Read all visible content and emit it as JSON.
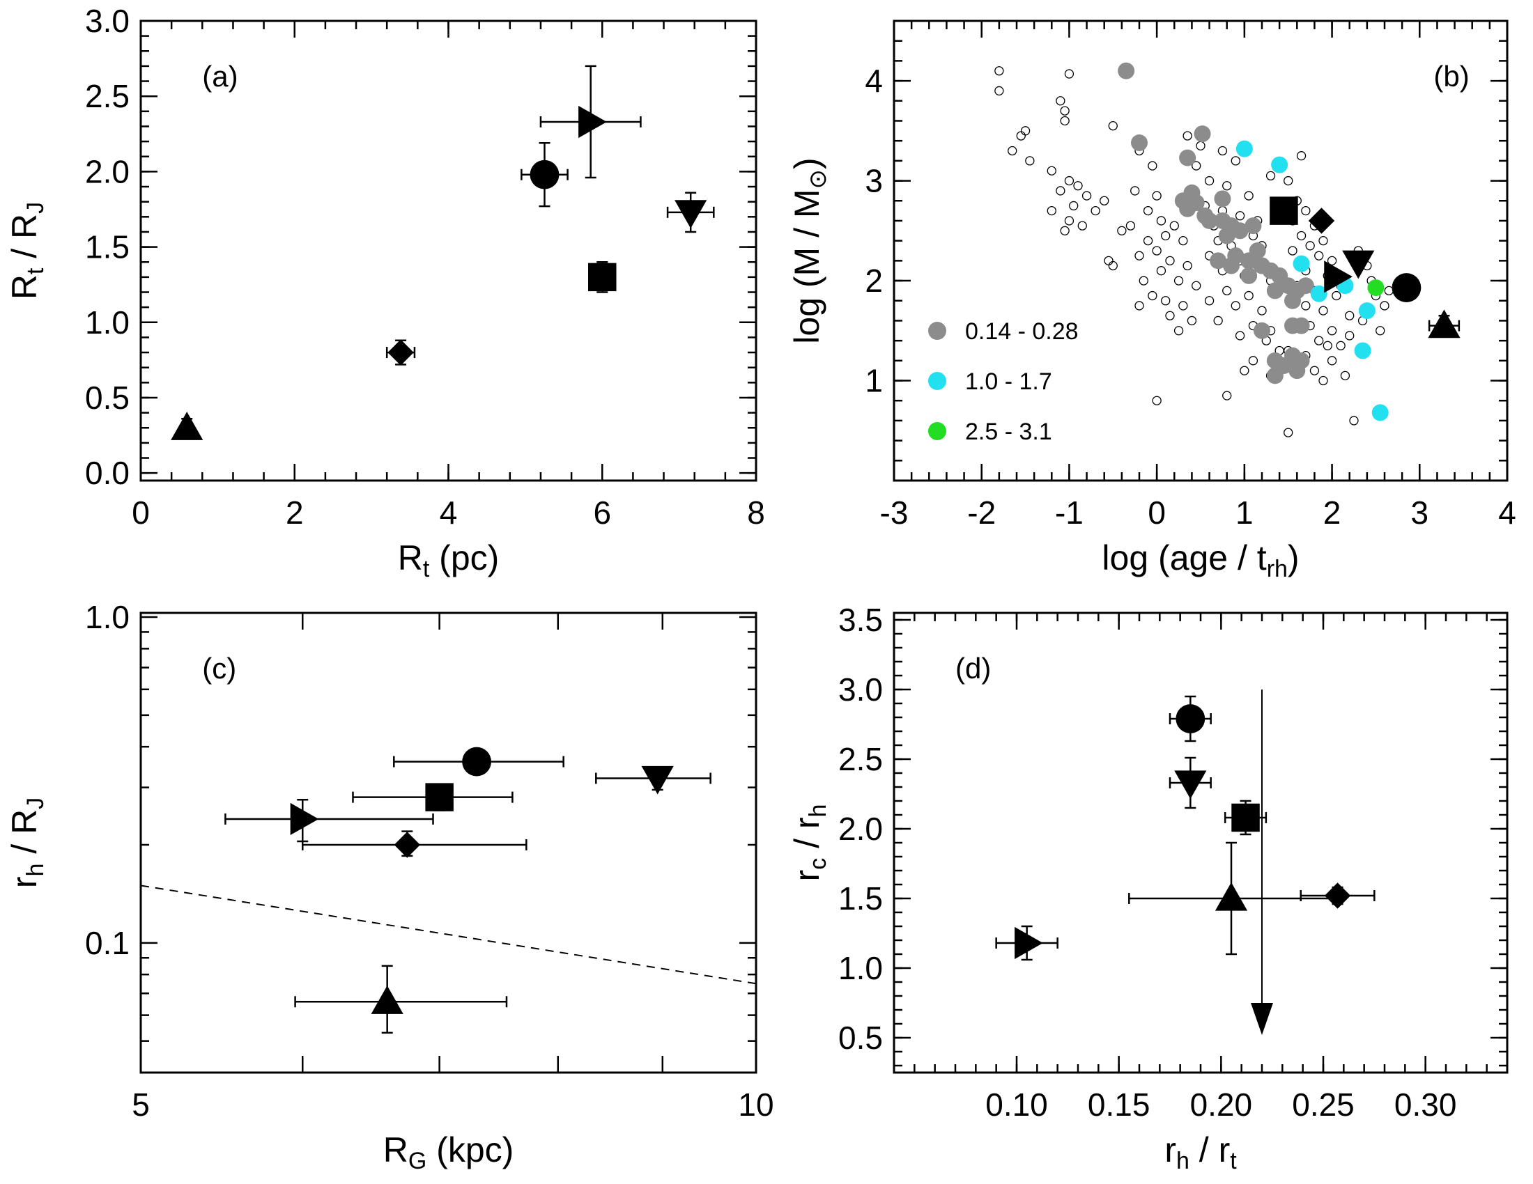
{
  "chart_data": [
    {
      "id": "a",
      "type": "scatter",
      "panel_label": "(a)",
      "xlabel": {
        "main": "R",
        "sub": "t",
        "tail": " (pc)"
      },
      "ylabel": {
        "main": "R",
        "sub": "t",
        "mid": " / R",
        "sub2": "J"
      },
      "xlim": [
        0,
        8
      ],
      "ylim": [
        -0.05,
        3.0
      ],
      "xticks": [
        0,
        2,
        4,
        6,
        8
      ],
      "yticks": [
        0.0,
        0.5,
        1.0,
        1.5,
        2.0,
        2.5,
        3.0
      ],
      "xtick_labels": [
        "0",
        "2",
        "4",
        "6",
        "8"
      ],
      "ytick_labels": [
        "0.0",
        "0.5",
        "1.0",
        "1.5",
        "2.0",
        "2.5",
        "3.0"
      ],
      "points": [
        {
          "marker": "triangle-up",
          "x": 0.6,
          "y": 0.3,
          "xerr": 0,
          "yerr": 0.06
        },
        {
          "marker": "diamond",
          "x": 3.38,
          "y": 0.8,
          "xerr": 0.18,
          "yerr": 0.08
        },
        {
          "marker": "circle",
          "x": 5.25,
          "y": 1.98,
          "xerr": 0.3,
          "yerr": 0.21
        },
        {
          "marker": "triangle-right",
          "x": 5.85,
          "y": 2.33,
          "xerr": 0.65,
          "yerr": 0.37
        },
        {
          "marker": "square",
          "x": 6.0,
          "y": 1.3,
          "xerr": 0.1,
          "yerr": 0.1
        },
        {
          "marker": "triangle-down",
          "x": 7.15,
          "y": 1.73,
          "xerr": 0.3,
          "yerr": 0.13
        }
      ]
    },
    {
      "id": "b",
      "type": "scatter",
      "panel_label": "(b)",
      "xlabel": {
        "main": "log (age / t",
        "sub": "rh",
        "tail": ")"
      },
      "ylabel": {
        "main": "log (M / M",
        "sub": "⊙",
        "tail": ")"
      },
      "xlim": [
        -3,
        4
      ],
      "ylim": [
        0.0,
        4.6
      ],
      "xticks": [
        -3,
        -2,
        -1,
        0,
        1,
        2,
        3,
        4
      ],
      "yticks": [
        1,
        2,
        3,
        4
      ],
      "xtick_labels": [
        "-3",
        "-2",
        "-1",
        "0",
        "1",
        "2",
        "3",
        "4"
      ],
      "ytick_labels": [
        "1",
        "2",
        "3",
        "4"
      ],
      "legend": [
        {
          "label": "0.14 - 0.28",
          "color": "#8c8c8c"
        },
        {
          "label": "1.0 - 1.7",
          "color": "#22e0f0"
        },
        {
          "label": "2.5 - 3.1",
          "color": "#22dd22"
        }
      ],
      "background_points": [
        [
          -1.8,
          4.1
        ],
        [
          -1.8,
          3.9
        ],
        [
          -1.0,
          4.07
        ],
        [
          -1.1,
          3.8
        ],
        [
          -1.05,
          3.7
        ],
        [
          -1.05,
          3.6
        ],
        [
          -0.5,
          3.55
        ],
        [
          -1.5,
          3.5
        ],
        [
          -1.55,
          3.45
        ],
        [
          -1.65,
          3.3
        ],
        [
          -1.45,
          3.2
        ],
        [
          -1.2,
          3.1
        ],
        [
          -1.0,
          3.0
        ],
        [
          -0.9,
          2.95
        ],
        [
          -1.1,
          2.9
        ],
        [
          -0.8,
          2.85
        ],
        [
          -0.6,
          2.8
        ],
        [
          -0.95,
          2.75
        ],
        [
          -1.2,
          2.7
        ],
        [
          -0.7,
          2.7
        ],
        [
          -1.0,
          2.6
        ],
        [
          -0.85,
          2.55
        ],
        [
          -1.05,
          2.5
        ],
        [
          -0.4,
          2.5
        ],
        [
          -0.55,
          2.2
        ],
        [
          -0.5,
          2.15
        ],
        [
          -0.2,
          3.3
        ],
        [
          -0.05,
          3.15
        ],
        [
          -0.25,
          2.9
        ],
        [
          0.0,
          2.85
        ],
        [
          -0.1,
          2.7
        ],
        [
          0.05,
          2.6
        ],
        [
          -0.3,
          2.55
        ],
        [
          0.2,
          2.55
        ],
        [
          0.1,
          2.45
        ],
        [
          -0.1,
          2.4
        ],
        [
          0.3,
          2.4
        ],
        [
          0.0,
          2.3
        ],
        [
          -0.2,
          2.25
        ],
        [
          0.15,
          2.2
        ],
        [
          0.35,
          2.15
        ],
        [
          0.05,
          2.1
        ],
        [
          -0.15,
          2.0
        ],
        [
          0.25,
          2.0
        ],
        [
          0.45,
          1.95
        ],
        [
          -0.05,
          1.85
        ],
        [
          0.1,
          1.8
        ],
        [
          -0.2,
          1.75
        ],
        [
          0.3,
          1.75
        ],
        [
          0.15,
          1.65
        ],
        [
          0.4,
          1.6
        ],
        [
          0.25,
          1.5
        ],
        [
          0.0,
          0.8
        ],
        [
          0.5,
          3.35
        ],
        [
          0.75,
          3.3
        ],
        [
          0.9,
          3.2
        ],
        [
          0.6,
          3.0
        ],
        [
          0.8,
          2.95
        ],
        [
          1.05,
          2.85
        ],
        [
          0.55,
          2.75
        ],
        [
          0.75,
          2.7
        ],
        [
          0.95,
          2.65
        ],
        [
          1.15,
          2.6
        ],
        [
          0.65,
          2.55
        ],
        [
          0.9,
          2.5
        ],
        [
          1.1,
          2.45
        ],
        [
          0.7,
          2.4
        ],
        [
          0.85,
          2.35
        ],
        [
          1.2,
          2.35
        ],
        [
          0.6,
          2.25
        ],
        [
          0.95,
          2.2
        ],
        [
          1.15,
          2.15
        ],
        [
          0.75,
          2.1
        ],
        [
          1.0,
          2.05
        ],
        [
          1.3,
          2.0
        ],
        [
          0.8,
          1.9
        ],
        [
          1.05,
          1.85
        ],
        [
          0.6,
          1.8
        ],
        [
          0.9,
          1.75
        ],
        [
          1.2,
          1.7
        ],
        [
          0.7,
          1.6
        ],
        [
          1.1,
          1.55
        ],
        [
          1.3,
          1.5
        ],
        [
          0.95,
          1.45
        ],
        [
          1.25,
          1.4
        ],
        [
          1.4,
          1.3
        ],
        [
          1.1,
          1.2
        ],
        [
          1.0,
          1.1
        ],
        [
          1.3,
          1.05
        ],
        [
          0.8,
          0.85
        ],
        [
          1.5,
          3.0
        ],
        [
          1.6,
          2.8
        ],
        [
          1.7,
          2.7
        ],
        [
          1.55,
          2.6
        ],
        [
          1.8,
          2.55
        ],
        [
          1.65,
          2.45
        ],
        [
          1.9,
          2.4
        ],
        [
          1.75,
          2.35
        ],
        [
          1.55,
          2.3
        ],
        [
          1.85,
          2.25
        ],
        [
          2.0,
          2.2
        ],
        [
          1.7,
          2.1
        ],
        [
          1.95,
          2.05
        ],
        [
          2.1,
          2.0
        ],
        [
          1.6,
          1.95
        ],
        [
          1.8,
          1.9
        ],
        [
          2.05,
          1.85
        ],
        [
          1.7,
          1.75
        ],
        [
          1.9,
          1.7
        ],
        [
          2.2,
          1.65
        ],
        [
          1.75,
          1.55
        ],
        [
          2.0,
          1.5
        ],
        [
          1.85,
          1.4
        ],
        [
          2.1,
          1.35
        ],
        [
          1.95,
          1.35
        ],
        [
          1.5,
          1.3
        ],
        [
          1.7,
          1.25
        ],
        [
          2.0,
          1.2
        ],
        [
          1.8,
          1.1
        ],
        [
          2.15,
          1.05
        ],
        [
          1.9,
          1.0
        ],
        [
          2.25,
          0.6
        ],
        [
          1.5,
          0.48
        ],
        [
          2.3,
          2.3
        ],
        [
          2.4,
          2.15
        ],
        [
          2.6,
          1.75
        ],
        [
          2.55,
          1.5
        ],
        [
          2.35,
          1.6
        ],
        [
          2.65,
          1.9
        ],
        [
          2.45,
          2.0
        ],
        [
          2.2,
          1.45
        ],
        [
          2.1,
          1.95
        ],
        [
          2.5,
          1.85
        ],
        [
          1.65,
          3.25
        ],
        [
          1.3,
          3.05
        ],
        [
          0.35,
          3.45
        ],
        [
          0.45,
          3.15
        ]
      ],
      "gray_points": [
        [
          -0.35,
          4.1
        ],
        [
          -0.2,
          3.38
        ],
        [
          0.35,
          3.23
        ],
        [
          0.52,
          3.47
        ],
        [
          0.3,
          2.8
        ],
        [
          0.45,
          2.78
        ],
        [
          0.35,
          2.72
        ],
        [
          0.55,
          2.65
        ],
        [
          0.4,
          2.88
        ],
        [
          0.6,
          2.6
        ],
        [
          0.75,
          2.82
        ],
        [
          0.75,
          2.6
        ],
        [
          0.85,
          2.55
        ],
        [
          0.8,
          2.45
        ],
        [
          0.95,
          2.5
        ],
        [
          1.1,
          2.55
        ],
        [
          0.7,
          2.2
        ],
        [
          0.85,
          2.15
        ],
        [
          0.9,
          2.25
        ],
        [
          1.05,
          2.2
        ],
        [
          1.15,
          2.3
        ],
        [
          1.2,
          2.15
        ],
        [
          1.05,
          2.05
        ],
        [
          1.3,
          2.1
        ],
        [
          1.4,
          2.05
        ],
        [
          1.5,
          1.95
        ],
        [
          1.6,
          1.9
        ],
        [
          1.7,
          1.95
        ],
        [
          1.55,
          1.8
        ],
        [
          1.35,
          1.9
        ],
        [
          1.2,
          1.5
        ],
        [
          1.55,
          1.55
        ],
        [
          1.65,
          1.55
        ],
        [
          1.35,
          1.2
        ],
        [
          1.55,
          1.25
        ],
        [
          1.65,
          1.2
        ],
        [
          1.45,
          1.15
        ],
        [
          1.6,
          1.1
        ],
        [
          1.35,
          1.05
        ]
      ],
      "cyan_points": [
        [
          1.0,
          3.32
        ],
        [
          1.4,
          3.16
        ],
        [
          1.65,
          2.17
        ],
        [
          1.85,
          1.87
        ],
        [
          2.15,
          1.95
        ],
        [
          2.4,
          1.7
        ],
        [
          2.35,
          1.3
        ],
        [
          2.55,
          0.68
        ]
      ],
      "green_points": [
        [
          2.5,
          1.93
        ]
      ],
      "points": [
        {
          "marker": "square",
          "x": 1.45,
          "y": 2.7,
          "xerr": 0,
          "yerr": 0
        },
        {
          "marker": "diamond",
          "x": 1.88,
          "y": 2.6,
          "xerr": 0,
          "yerr": 0
        },
        {
          "marker": "triangle-down",
          "x": 2.3,
          "y": 2.18,
          "xerr": 0,
          "yerr": 0
        },
        {
          "marker": "triangle-right",
          "x": 2.05,
          "y": 2.04,
          "xerr": 0,
          "yerr": 0
        },
        {
          "marker": "circle",
          "x": 2.85,
          "y": 1.93,
          "xerr": 0,
          "yerr": 0
        },
        {
          "marker": "triangle-up",
          "x": 3.28,
          "y": 1.55,
          "xerr": 0.17,
          "yerr": 0.1
        }
      ]
    },
    {
      "id": "c",
      "type": "scatter",
      "panel_label": "(c)",
      "xscale": "log",
      "yscale": "log",
      "xlabel": {
        "main": "R",
        "sub": "G",
        "tail": " (kpc)"
      },
      "ylabel": {
        "main": "r",
        "sub": "h",
        "mid": " / R",
        "sub2": "J"
      },
      "xlim": [
        5,
        10
      ],
      "ylim": [
        0.04,
        1.03
      ],
      "xticks": [
        5,
        10
      ],
      "yticks": [
        0.1,
        1.0
      ],
      "xtick_labels": [
        "5",
        "10"
      ],
      "ytick_labels": [
        "0.1",
        "1.0"
      ],
      "reference_line": {
        "x": [
          5,
          10
        ],
        "y": [
          0.15,
          0.075
        ],
        "style": "dashed"
      },
      "points": [
        {
          "marker": "triangle-up",
          "x": 6.6,
          "y": 0.066,
          "xlo": 5.95,
          "xhi": 7.55,
          "ylo": 0.053,
          "yhi": 0.085
        },
        {
          "marker": "diamond",
          "x": 6.75,
          "y": 0.2,
          "xlo": 6.0,
          "xhi": 7.72,
          "ylo": 0.185,
          "yhi": 0.22
        },
        {
          "marker": "triangle-right",
          "x": 6.0,
          "y": 0.24,
          "xlo": 5.5,
          "xhi": 6.95,
          "ylo": 0.205,
          "yhi": 0.275
        },
        {
          "marker": "square",
          "x": 7.0,
          "y": 0.28,
          "xlo": 6.35,
          "xhi": 7.6,
          "ylo": 0.255,
          "yhi": 0.3
        },
        {
          "marker": "circle",
          "x": 7.3,
          "y": 0.36,
          "xlo": 6.65,
          "xhi": 8.05,
          "ylo": 0.335,
          "yhi": 0.385
        },
        {
          "marker": "triangle-down",
          "x": 8.95,
          "y": 0.32,
          "xlo": 8.35,
          "xhi": 9.5,
          "ylo": 0.295,
          "yhi": 0.345
        }
      ]
    },
    {
      "id": "d",
      "type": "scatter",
      "panel_label": "(d)",
      "xlabel": {
        "main": "r",
        "sub": "h",
        "mid": " / r",
        "sub2": "t"
      },
      "ylabel": {
        "main": "r",
        "sub": "c",
        "mid": " / r",
        "sub2": "h"
      },
      "xlim": [
        0.04,
        0.34
      ],
      "ylim": [
        0.25,
        3.55
      ],
      "xticks": [
        0.1,
        0.15,
        0.2,
        0.25,
        0.3
      ],
      "yticks": [
        0.5,
        1.0,
        1.5,
        2.0,
        2.5,
        3.0,
        3.5
      ],
      "xtick_labels": [
        "0.10",
        "0.15",
        "0.20",
        "0.25",
        "0.30"
      ],
      "ytick_labels": [
        "0.5",
        "1.0",
        "1.5",
        "2.0",
        "2.5",
        "3.0",
        "3.5"
      ],
      "upper_limit": {
        "x": 0.22,
        "y_top": 3.0,
        "y_arrow": 0.6
      },
      "points": [
        {
          "marker": "triangle-right",
          "x": 0.105,
          "y": 1.18,
          "xerr": 0.015,
          "yerr": 0.12
        },
        {
          "marker": "triangle-up",
          "x": 0.205,
          "y": 1.5,
          "xerr": 0.05,
          "yerr": 0.4
        },
        {
          "marker": "diamond",
          "x": 0.257,
          "y": 1.52,
          "xerr": 0.018,
          "yerr": 0.06
        },
        {
          "marker": "square",
          "x": 0.212,
          "y": 2.08,
          "xerr": 0.01,
          "yerr": 0.12
        },
        {
          "marker": "triangle-down",
          "x": 0.185,
          "y": 2.33,
          "xerr": 0.01,
          "yerr": 0.18
        },
        {
          "marker": "circle",
          "x": 0.185,
          "y": 2.79,
          "xerr": 0.01,
          "yerr": 0.16
        }
      ]
    }
  ]
}
